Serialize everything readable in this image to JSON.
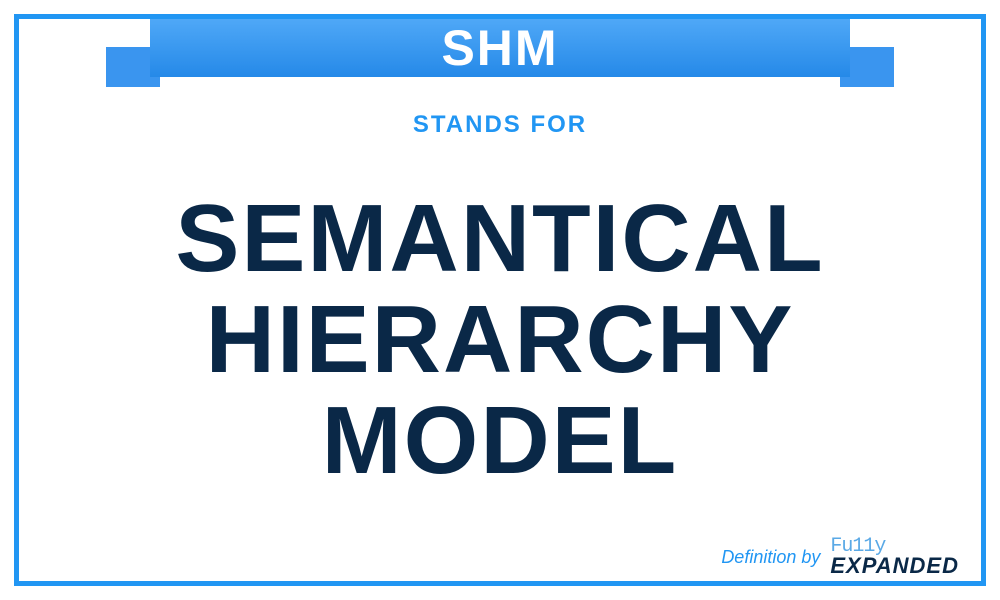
{
  "banner": {
    "acronym": "SHM",
    "bg_gradient_top": "#4fa8f7",
    "bg_gradient_bottom": "#2589e8",
    "text_color": "#ffffff",
    "ribbon_color": "#3a95ef",
    "fold_color": "#0b4a7f"
  },
  "stands_for": {
    "label": "STANDS FOR",
    "color": "#2196f3",
    "fontsize": 24
  },
  "definition": {
    "text": "SEMANTICAL HIERARCHY MODEL",
    "color": "#0a2847",
    "fontsize": 96
  },
  "footer": {
    "definition_by": "Definition by",
    "logo_top": "Fu11y",
    "logo_bottom": "EXPANDED",
    "defby_color": "#2196f3",
    "logo_top_color": "#5aa9e6",
    "logo_bottom_color": "#0a2847"
  },
  "frame": {
    "border_color": "#2196f3",
    "border_width": 5,
    "background": "#ffffff"
  }
}
